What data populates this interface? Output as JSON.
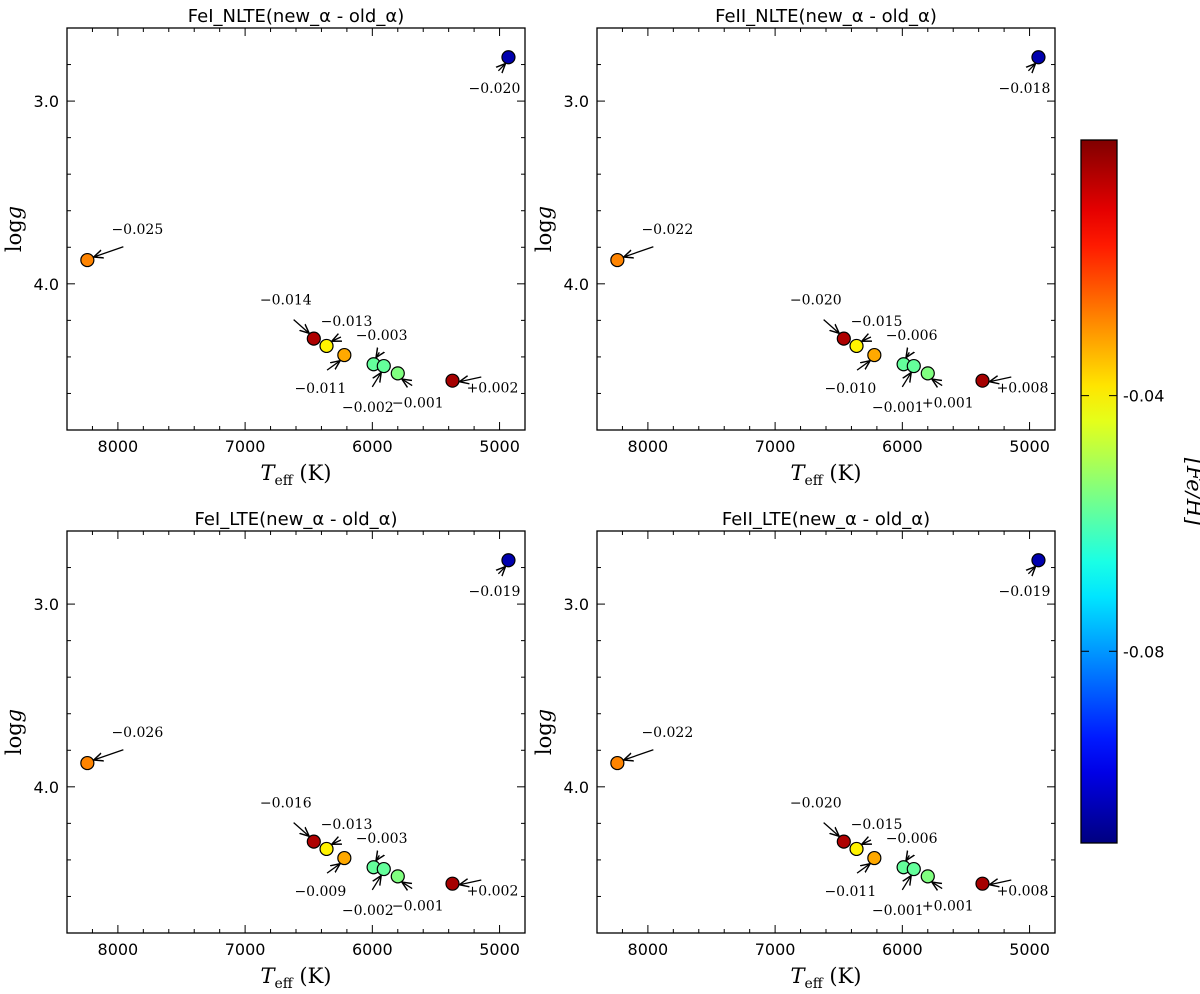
{
  "chart_data": [
    {
      "type": "scatter",
      "title": "FeI_NLTE(new_α - old_α)",
      "xlabel": "T_eff (K)",
      "ylabel": "log g",
      "xlim": [
        8400,
        4800
      ],
      "ylim": [
        4.8,
        2.6
      ],
      "xticks": [
        "8000",
        "7000",
        "6000",
        "5000"
      ],
      "yticks": [
        "3.0",
        "4.0"
      ],
      "points": [
        {
          "teff": 4930,
          "logg": 2.76,
          "feh": -0.105,
          "label": "−0.020"
        },
        {
          "teff": 8240,
          "logg": 3.87,
          "feh": -0.028,
          "label": "−0.025"
        },
        {
          "teff": 6460,
          "logg": 4.3,
          "feh": -0.005,
          "label": "−0.014"
        },
        {
          "teff": 6360,
          "logg": 4.34,
          "feh": -0.04,
          "label": "−0.013"
        },
        {
          "teff": 6220,
          "logg": 4.39,
          "feh": -0.032,
          "label": "−0.011"
        },
        {
          "teff": 5990,
          "logg": 4.44,
          "feh": -0.058,
          "label": "−0.003"
        },
        {
          "teff": 5910,
          "logg": 4.45,
          "feh": -0.058,
          "label": "−0.002"
        },
        {
          "teff": 5800,
          "logg": 4.49,
          "feh": -0.055,
          "label": "−0.001"
        },
        {
          "teff": 5370,
          "logg": 4.53,
          "feh": -0.004,
          "label": "+0.002"
        }
      ]
    },
    {
      "type": "scatter",
      "title": "FeII_NLTE(new_α - old_α)",
      "xlabel": "T_eff (K)",
      "ylabel": "log g",
      "xlim": [
        8400,
        4800
      ],
      "ylim": [
        4.8,
        2.6
      ],
      "xticks": [
        "8000",
        "7000",
        "6000",
        "5000"
      ],
      "yticks": [
        "3.0",
        "4.0"
      ],
      "points": [
        {
          "teff": 4930,
          "logg": 2.76,
          "feh": -0.105,
          "label": "−0.018"
        },
        {
          "teff": 8240,
          "logg": 3.87,
          "feh": -0.028,
          "label": "−0.022"
        },
        {
          "teff": 6460,
          "logg": 4.3,
          "feh": -0.005,
          "label": "−0.020"
        },
        {
          "teff": 6360,
          "logg": 4.34,
          "feh": -0.04,
          "label": "−0.015"
        },
        {
          "teff": 6220,
          "logg": 4.39,
          "feh": -0.032,
          "label": "−0.010"
        },
        {
          "teff": 5990,
          "logg": 4.44,
          "feh": -0.058,
          "label": "−0.006"
        },
        {
          "teff": 5910,
          "logg": 4.45,
          "feh": -0.058,
          "label": "−0.001"
        },
        {
          "teff": 5800,
          "logg": 4.49,
          "feh": -0.055,
          "label": "+0.001"
        },
        {
          "teff": 5370,
          "logg": 4.53,
          "feh": -0.004,
          "label": "+0.008"
        }
      ]
    },
    {
      "type": "scatter",
      "title": "FeI_LTE(new_α - old_α)",
      "xlabel": "T_eff (K)",
      "ylabel": "log g",
      "xlim": [
        8400,
        4800
      ],
      "ylim": [
        4.8,
        2.6
      ],
      "xticks": [
        "8000",
        "7000",
        "6000",
        "5000"
      ],
      "yticks": [
        "3.0",
        "4.0"
      ],
      "points": [
        {
          "teff": 4930,
          "logg": 2.76,
          "feh": -0.105,
          "label": "−0.019"
        },
        {
          "teff": 8240,
          "logg": 3.87,
          "feh": -0.028,
          "label": "−0.026"
        },
        {
          "teff": 6460,
          "logg": 4.3,
          "feh": -0.005,
          "label": "−0.016"
        },
        {
          "teff": 6360,
          "logg": 4.34,
          "feh": -0.04,
          "label": "−0.013"
        },
        {
          "teff": 6220,
          "logg": 4.39,
          "feh": -0.032,
          "label": "−0.009"
        },
        {
          "teff": 5990,
          "logg": 4.44,
          "feh": -0.058,
          "label": "−0.003"
        },
        {
          "teff": 5910,
          "logg": 4.45,
          "feh": -0.058,
          "label": "−0.002"
        },
        {
          "teff": 5800,
          "logg": 4.49,
          "feh": -0.055,
          "label": "−0.001"
        },
        {
          "teff": 5370,
          "logg": 4.53,
          "feh": -0.004,
          "label": "+0.002"
        }
      ]
    },
    {
      "type": "scatter",
      "title": "FeII_LTE(new_α - old_α)",
      "xlabel": "T_eff (K)",
      "ylabel": "log g",
      "xlim": [
        8400,
        4800
      ],
      "ylim": [
        4.8,
        2.6
      ],
      "xticks": [
        "8000",
        "7000",
        "6000",
        "5000"
      ],
      "yticks": [
        "3.0",
        "4.0"
      ],
      "points": [
        {
          "teff": 4930,
          "logg": 2.76,
          "feh": -0.105,
          "label": "−0.019"
        },
        {
          "teff": 8240,
          "logg": 3.87,
          "feh": -0.028,
          "label": "−0.022"
        },
        {
          "teff": 6460,
          "logg": 4.3,
          "feh": -0.005,
          "label": "−0.020"
        },
        {
          "teff": 6360,
          "logg": 4.34,
          "feh": -0.04,
          "label": "−0.015"
        },
        {
          "teff": 6220,
          "logg": 4.39,
          "feh": -0.032,
          "label": "−0.011"
        },
        {
          "teff": 5990,
          "logg": 4.44,
          "feh": -0.058,
          "label": "−0.006"
        },
        {
          "teff": 5910,
          "logg": 4.45,
          "feh": -0.058,
          "label": "−0.001"
        },
        {
          "teff": 5800,
          "logg": 4.49,
          "feh": -0.055,
          "label": "+0.001"
        },
        {
          "teff": 5370,
          "logg": 4.53,
          "feh": -0.004,
          "label": "+0.008"
        }
      ]
    }
  ],
  "colorbar": {
    "label": "[Fe/H]",
    "range": [
      -0.11,
      0.0
    ],
    "ticks": [
      {
        "value": -0.04,
        "label": "-0.04"
      },
      {
        "value": -0.08,
        "label": "-0.08"
      }
    ],
    "colormap": "jet"
  }
}
